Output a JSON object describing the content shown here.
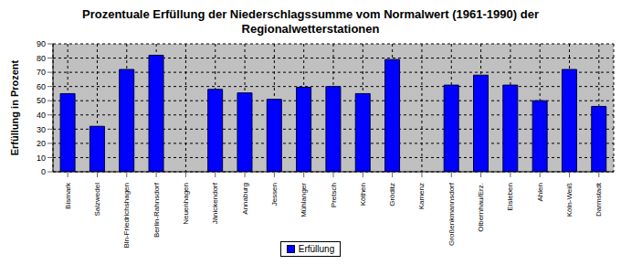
{
  "chart_data": {
    "type": "bar",
    "title": "Prozentuale Erfüllung der Niederschlagssumme vom Normalwert (1961-1990) der Regionalwetterstationen",
    "y_label": "Erfüllung in Prozent",
    "categories": [
      "Bismark",
      "Salzwedel",
      "Bln-Friedrichshagen",
      "Berlin-Rahnsdorf",
      "Neuenhagen",
      "Jänickendorf",
      "Annaburg",
      "Jessen",
      "Mühlanger",
      "Pretsch",
      "Köthen",
      "Gröditz",
      "Kamenz",
      "Großenkmannsdorf",
      "Olbernhau/Erz.",
      "Eisleben",
      "Ahlen",
      "Köln-Weiß",
      "Darmstadt"
    ],
    "series": [
      {
        "name": "Erfüllung",
        "color": "#0000ff",
        "values": [
          55,
          32,
          72,
          82,
          null,
          58,
          55.5,
          51,
          59.5,
          60,
          55,
          79,
          null,
          61,
          68,
          61,
          50,
          72,
          46
        ]
      }
    ],
    "ylim": [
      0,
      90
    ],
    "yticks": [
      0,
      10,
      20,
      30,
      40,
      50,
      60,
      70,
      80,
      90
    ],
    "grid": true,
    "legend": "bottom"
  }
}
